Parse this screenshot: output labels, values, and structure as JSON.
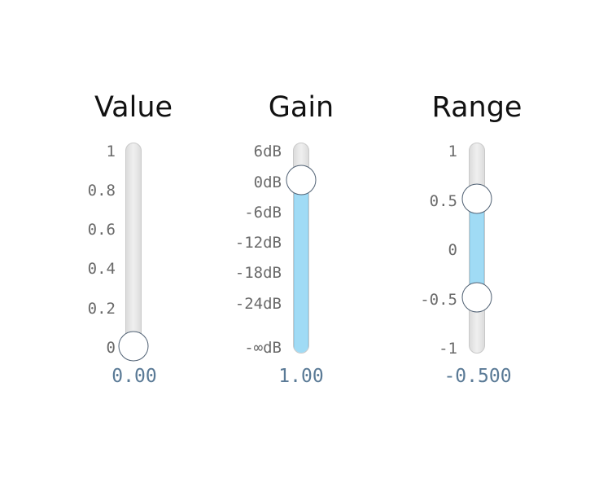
{
  "sliders": [
    {
      "title": "Value",
      "ticks": [
        "1",
        "0.8",
        "0.6",
        "0.4",
        "0.2",
        "0"
      ],
      "readout": "0.00",
      "value": 0.0,
      "range": [
        0,
        1
      ]
    },
    {
      "title": "Gain",
      "ticks": [
        "6dB",
        "0dB",
        "-6dB",
        "-12dB",
        "-18dB",
        "-24dB",
        "-∞dB"
      ],
      "readout": "1.00",
      "value": 1.0,
      "unit": "gain"
    },
    {
      "title": "Range",
      "ticks": [
        "1",
        "0.5",
        "0",
        "-0.5",
        "-1"
      ],
      "readout": "-0.500",
      "low": -0.5,
      "high": 0.5,
      "range": [
        -1,
        1
      ]
    }
  ],
  "colors": {
    "fill": "#a0dbf5",
    "thumb_border": "#4f6073",
    "readout": "#5a7a96",
    "tick": "#6a6a6a",
    "title": "#111111"
  }
}
